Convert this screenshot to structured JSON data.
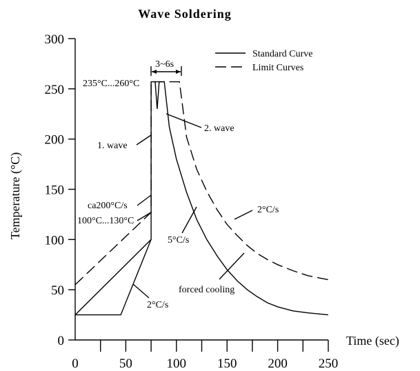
{
  "chart_data": {
    "type": "line",
    "title": "Wave Soldering",
    "xlabel": "Time (sec)",
    "ylabel": "Temperature (°C)",
    "xlim": [
      0,
      250
    ],
    "ylim": [
      0,
      300
    ],
    "x_ticks": [
      0,
      50,
      100,
      150,
      200,
      250
    ],
    "y_ticks": [
      0,
      50,
      100,
      150,
      200,
      250,
      300
    ],
    "grid": false,
    "legend_position": "top-right",
    "legend": [
      {
        "label": "Standard Curve",
        "style": "solid"
      },
      {
        "label": "Limit Curves",
        "style": "dashed"
      }
    ],
    "series": [
      {
        "style": "solid",
        "x": [
          0,
          75,
          75,
          79,
          81,
          83,
          88,
          93,
          100,
          110,
          120,
          130,
          140,
          150,
          160,
          170,
          180,
          190,
          200,
          215,
          230,
          250
        ],
        "y": [
          25,
          100,
          257,
          257,
          230,
          257,
          257,
          212,
          180,
          147,
          120,
          100,
          84,
          70,
          59,
          50,
          43,
          37,
          33,
          29,
          27,
          25
        ]
      },
      {
        "style": "dashed",
        "x": [
          0,
          75,
          75,
          103,
          110,
          120,
          130,
          140,
          150,
          160,
          170,
          180,
          190,
          200,
          215,
          230,
          250
        ],
        "y": [
          55,
          127,
          257,
          257,
          202,
          170,
          148,
          130,
          115,
          104,
          94,
          86,
          80,
          75,
          69,
          64,
          60
        ]
      },
      {
        "style": "solid",
        "x": [
          0,
          45,
          75
        ],
        "y": [
          25,
          25,
          100
        ]
      }
    ],
    "annotations": [
      {
        "text": "235°C...260°C",
        "x": 75,
        "y": 257
      },
      {
        "text": "3~6s",
        "x": 91,
        "y": 265
      },
      {
        "text": "1. wave",
        "x": 75,
        "y": 195
      },
      {
        "text": "2. wave",
        "x": 90,
        "y": 225
      },
      {
        "text": "ca200°C/s",
        "x": 75,
        "y": 140
      },
      {
        "text": "100°C...130°C",
        "x": 75,
        "y": 115
      },
      {
        "text": "5°C/s",
        "x": 120,
        "y": 120
      },
      {
        "text": "2°C/s",
        "x": 170,
        "y": 130
      },
      {
        "text": "forced cooling",
        "x": 170,
        "y": 60
      },
      {
        "text": "2°C/s",
        "x": 40,
        "y": 20
      }
    ]
  }
}
